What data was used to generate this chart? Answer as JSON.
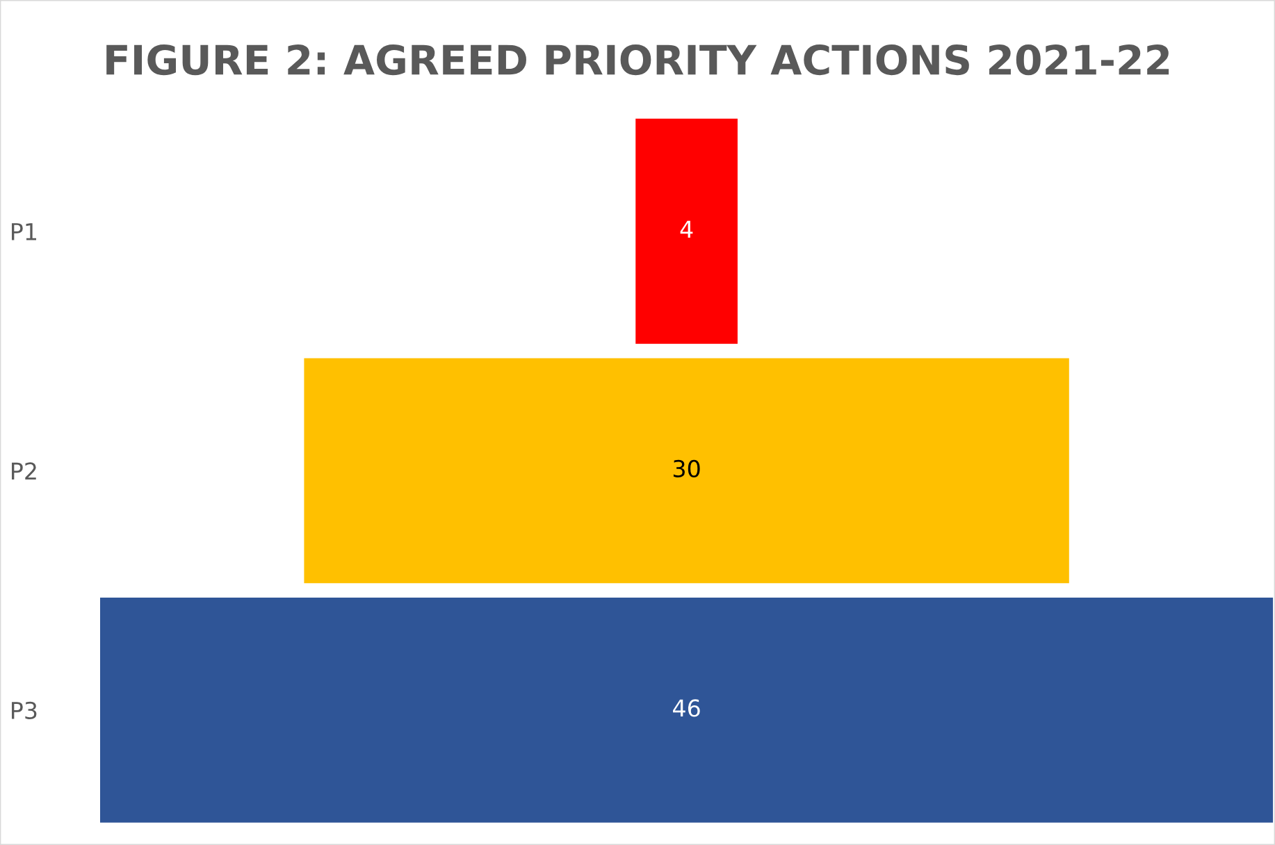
{
  "chart_data": {
    "type": "other",
    "title": "FIGURE 2: AGREED PRIORITY ACTIONS 2021-22",
    "categories": [
      "P1",
      "P2",
      "P3"
    ],
    "values": [
      4,
      30,
      46
    ],
    "colors": [
      "#ff0000",
      "#ffc000",
      "#2f5597"
    ],
    "data_labels": true
  }
}
